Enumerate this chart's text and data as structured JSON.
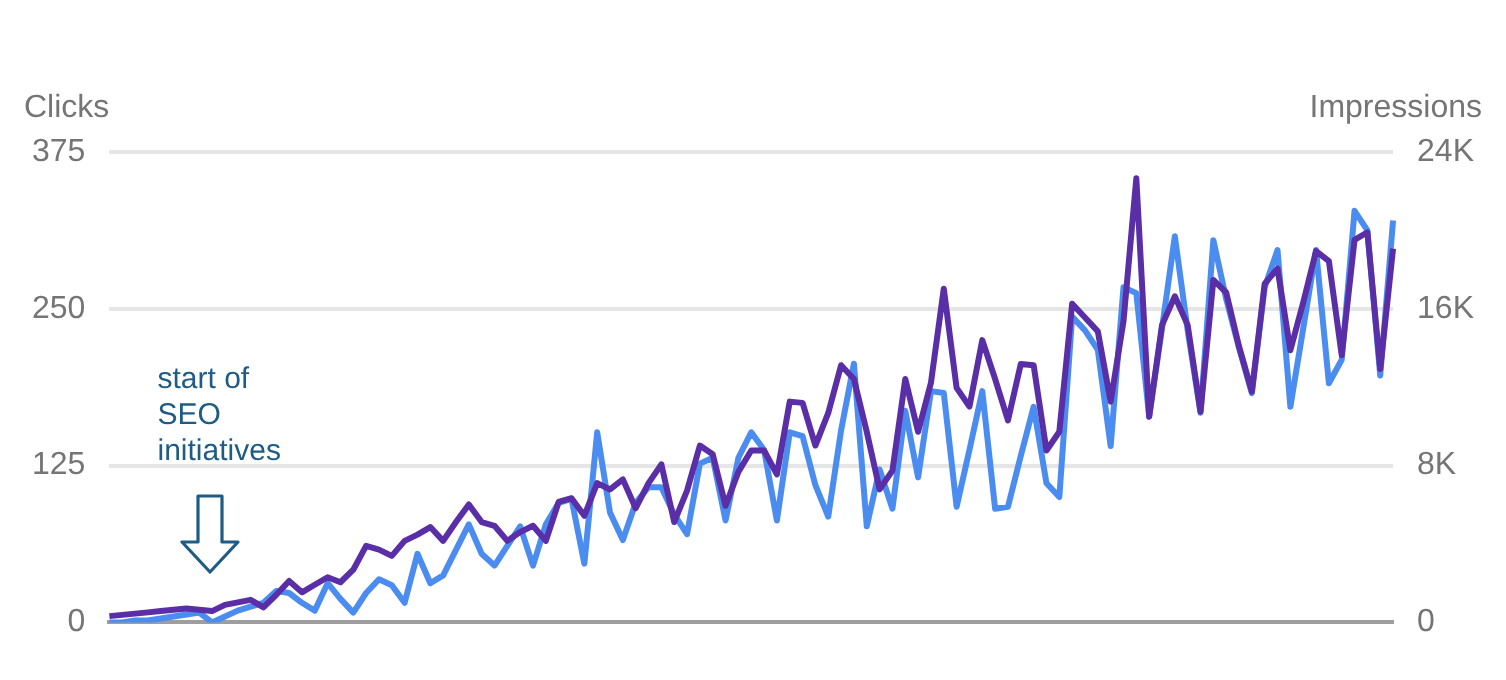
{
  "chart_data": {
    "type": "line",
    "ylabel": "Clicks",
    "y2label": "Impressions",
    "ylim": [
      0,
      375
    ],
    "yticks": [
      0,
      125,
      250,
      375
    ],
    "y2lim": [
      0,
      24000
    ],
    "y2ticks": [
      {
        "value": 0,
        "label": "0"
      },
      {
        "value": 8000,
        "label": "8K"
      },
      {
        "value": 16000,
        "label": "16K"
      },
      {
        "value": 24000,
        "label": "24K"
      }
    ],
    "grid": "y",
    "legend": false,
    "marker": "none",
    "line_style": "solid",
    "annotations": [
      "start of SEO initiatives"
    ],
    "categories": [
      null,
      null,
      null,
      null,
      null,
      null,
      null,
      null,
      null,
      null,
      null,
      null,
      null,
      null,
      null,
      null,
      null,
      null,
      null,
      null,
      null,
      null,
      null,
      null,
      null,
      null,
      null,
      null,
      null,
      null,
      null,
      null,
      null,
      null,
      null,
      null,
      null,
      null,
      null,
      null,
      null,
      null,
      null,
      null,
      null,
      null,
      null,
      null,
      null,
      null,
      null,
      null,
      null,
      null,
      null,
      null,
      null,
      null,
      null,
      null,
      null,
      null,
      null,
      null,
      null,
      null,
      null,
      null,
      null,
      null,
      null,
      null,
      null,
      null,
      null,
      null,
      null,
      null,
      null,
      null,
      null,
      null,
      null,
      null,
      null,
      null,
      null,
      null,
      null,
      null,
      null,
      null,
      null,
      null,
      null,
      null,
      null,
      null,
      null,
      null,
      null
    ],
    "series": [
      {
        "color": "#5a2ea6",
        "axis": "y",
        "values": [
          5,
          6,
          7,
          8,
          9,
          10,
          11,
          10,
          9,
          14,
          16,
          18,
          12,
          22,
          33,
          24,
          30,
          36,
          32,
          42,
          61,
          58,
          53,
          65,
          70,
          76,
          65,
          80,
          94,
          80,
          77,
          65,
          72,
          77,
          65,
          96,
          99,
          85,
          111,
          106,
          114,
          91,
          111,
          126,
          80,
          105,
          141,
          134,
          93,
          120,
          137,
          137,
          118,
          176,
          175,
          141,
          167,
          205,
          194,
          152,
          106,
          121,
          194,
          152,
          191,
          266,
          187,
          172,
          225,
          194,
          161,
          206,
          205,
          137,
          152,
          254,
          243,
          232,
          176,
          240,
          354,
          164,
          237,
          260,
          237,
          168,
          273,
          263,
          220,
          184,
          270,
          282,
          217,
          255,
          296,
          288,
          213,
          305,
          311,
          202,
          298
        ]
      },
      {
        "color": "#4a8cf0",
        "axis": "y2",
        "values": [
          0,
          0,
          100,
          100,
          200,
          300,
          400,
          500,
          0,
          300,
          600,
          800,
          1000,
          1600,
          1500,
          1000,
          600,
          2000,
          1200,
          500,
          1500,
          2200,
          1900,
          1000,
          3500,
          2000,
          2400,
          3700,
          5000,
          3500,
          2900,
          3900,
          4900,
          2900,
          5000,
          6100,
          6300,
          3000,
          9700,
          5600,
          4200,
          6100,
          6900,
          6900,
          5500,
          4500,
          8100,
          8400,
          5200,
          8400,
          9700,
          8800,
          5200,
          9700,
          9500,
          7000,
          5400,
          9800,
          13200,
          4900,
          7800,
          5800,
          10800,
          7400,
          11800,
          11700,
          5900,
          8800,
          11800,
          5800,
          5900,
          8500,
          11000,
          7100,
          6400,
          15600,
          14900,
          13900,
          9000,
          17100,
          16800,
          10500,
          15000,
          19700,
          14900,
          10700,
          19500,
          16500,
          14000,
          11700,
          17100,
          19000,
          11000,
          15000,
          19000,
          12200,
          13400,
          21000,
          20000,
          12600,
          20500
        ]
      }
    ]
  }
}
